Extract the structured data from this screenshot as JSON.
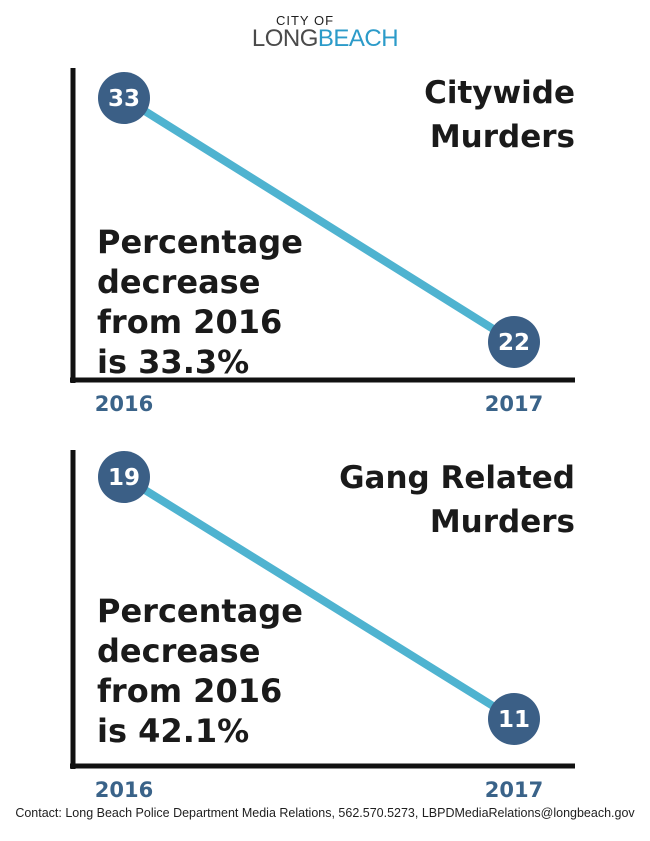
{
  "logo": {
    "top": "CITY OF",
    "main_a": "LONG",
    "main_b": "BEACH"
  },
  "colors": {
    "line": "#4fb3d0",
    "marker": "#3b5f86",
    "axis": "#111111",
    "year": "#3a6389"
  },
  "chart_data": [
    {
      "type": "line",
      "title_lines": [
        "Citywide",
        "Murders"
      ],
      "categories": [
        "2016",
        "2017"
      ],
      "values": [
        33,
        22
      ],
      "annotation_lines": [
        "Percentage",
        "decrease",
        "from 2016",
        "is 33.3%"
      ]
    },
    {
      "type": "line",
      "title_lines": [
        "Gang Related",
        "Murders"
      ],
      "categories": [
        "2016",
        "2017"
      ],
      "values": [
        19,
        11
      ],
      "annotation_lines": [
        "Percentage",
        "decrease",
        "from 2016",
        "is 42.1%"
      ]
    }
  ],
  "footer": "Contact: Long Beach Police Department Media Relations, 562.570.5273, LBPDMediaRelations@longbeach.gov"
}
